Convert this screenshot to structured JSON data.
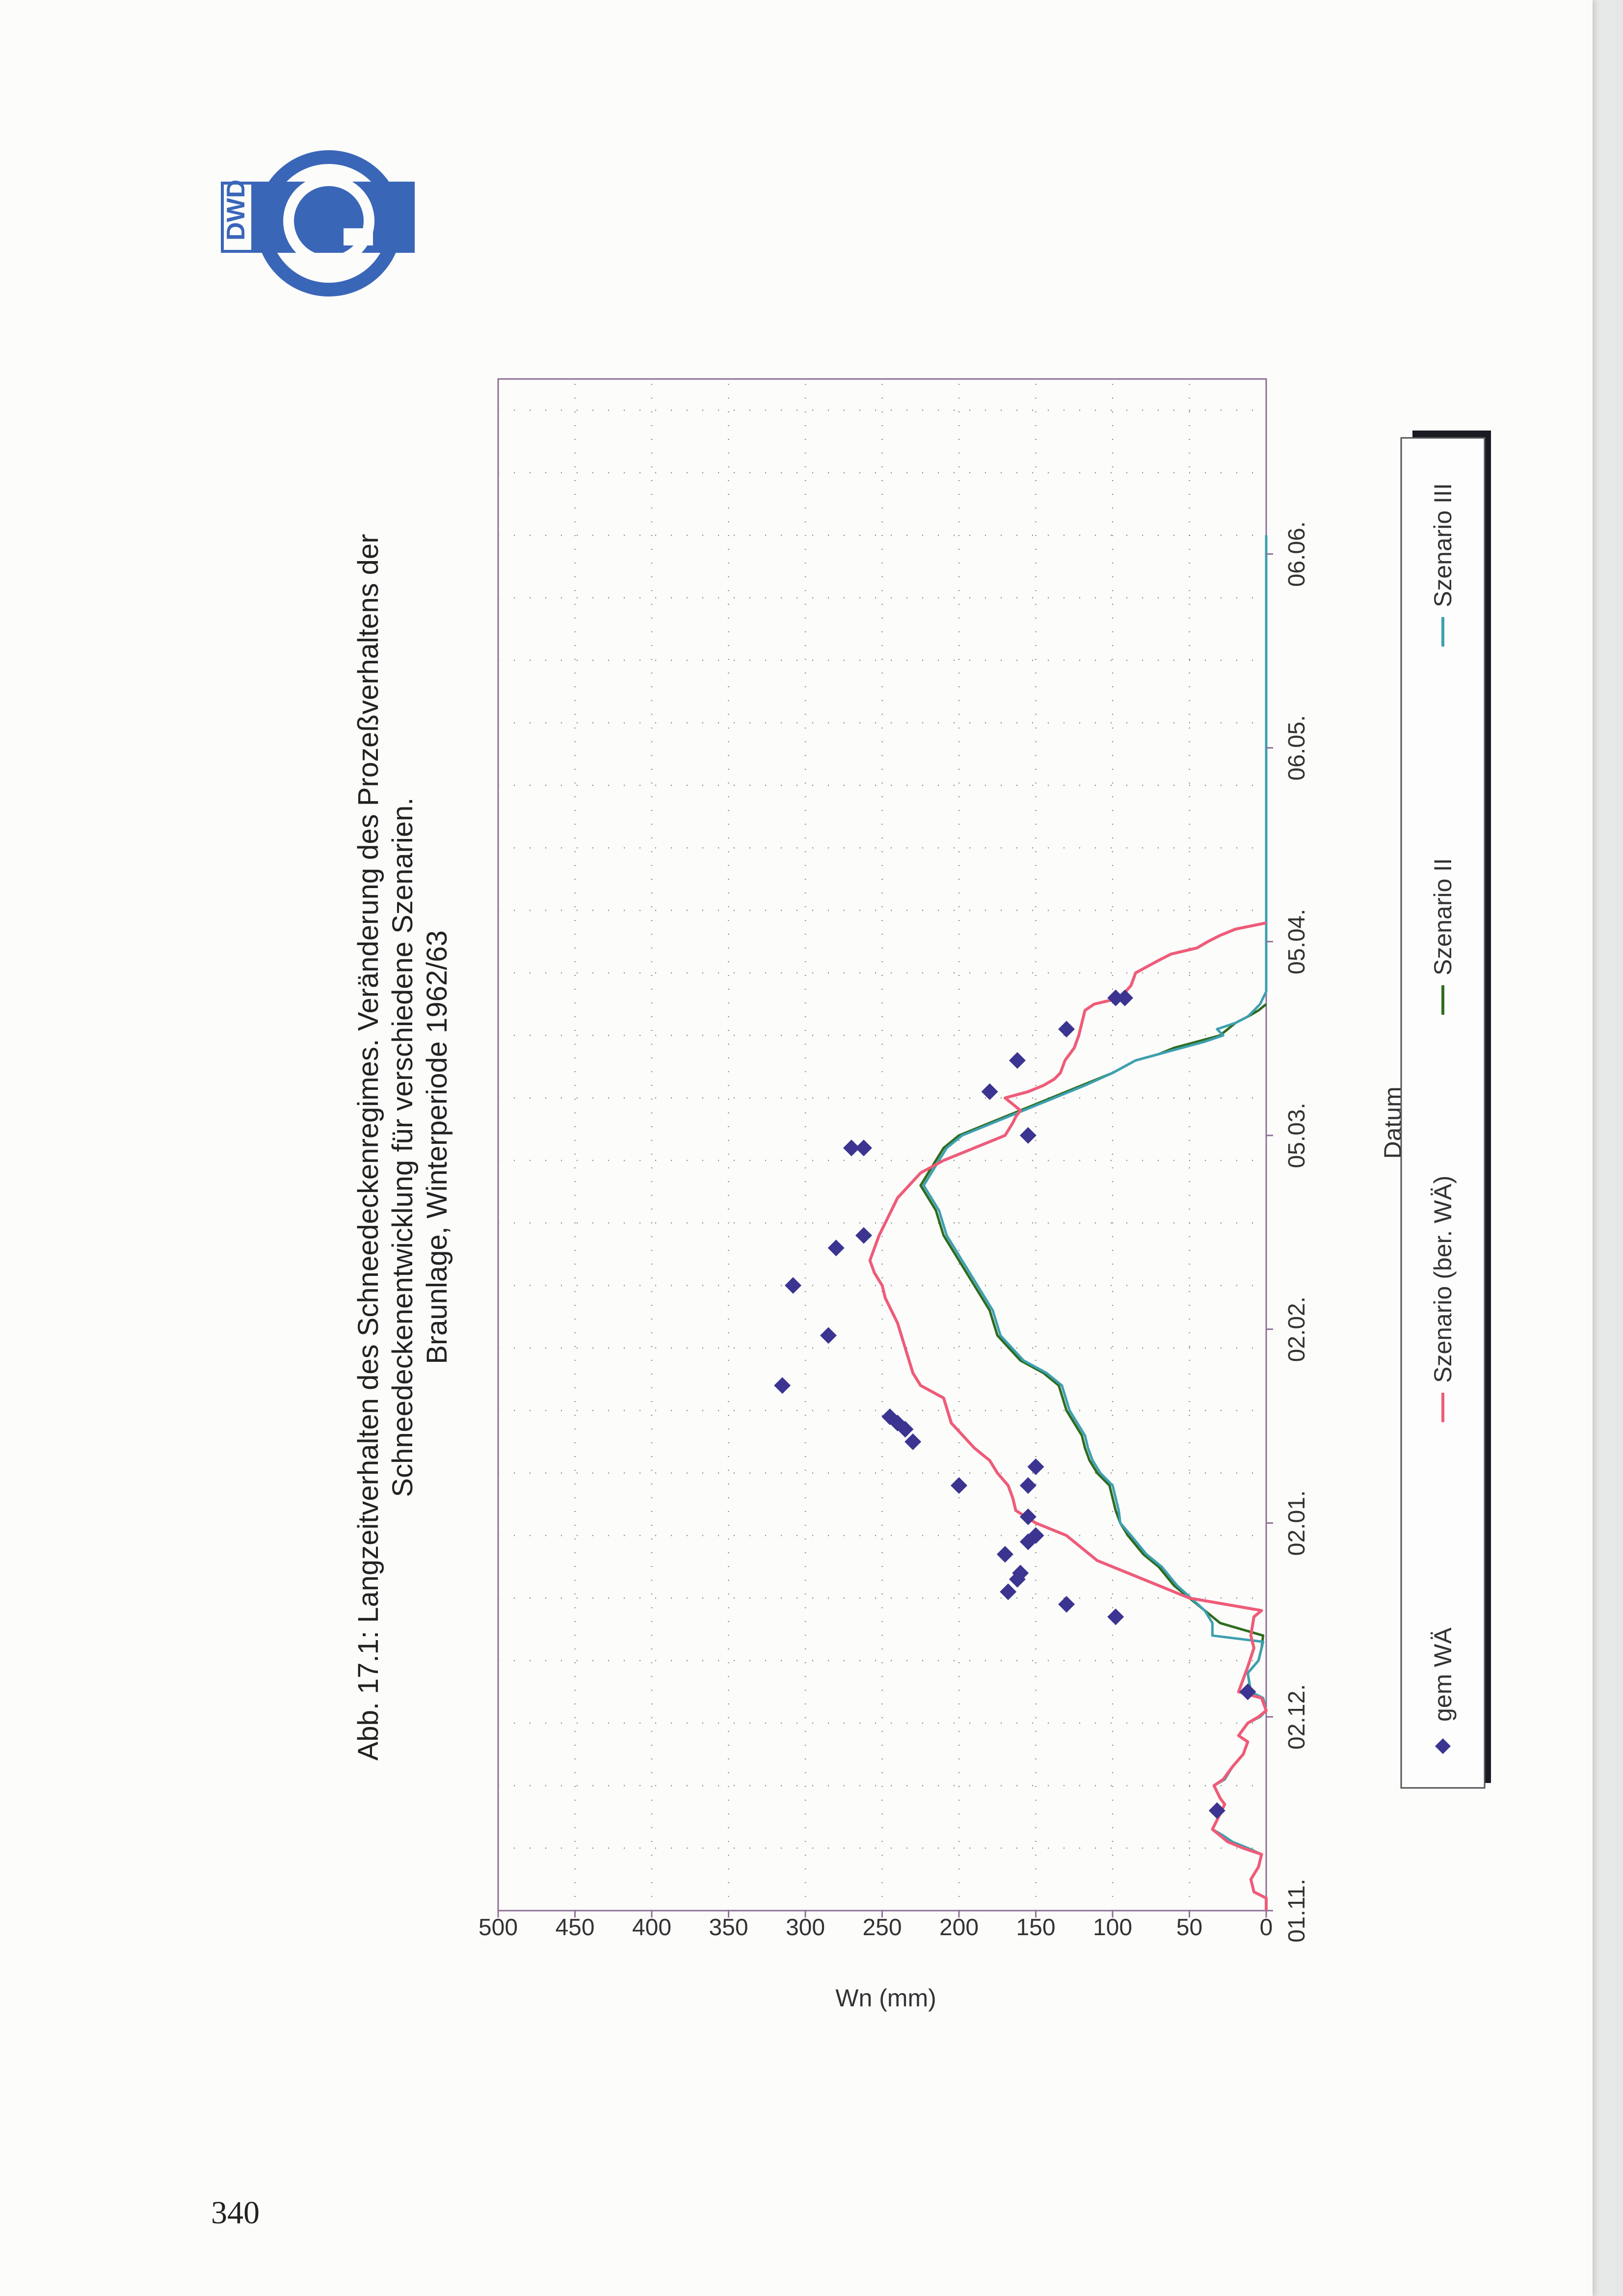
{
  "page": {
    "number": "340"
  },
  "logo": {
    "text": "DWD",
    "color": "#3a66b8"
  },
  "colors": {
    "scenario_ber": "#ee5c78",
    "scenario_2": "#2f6b1f",
    "scenario_3": "#3da0b0",
    "gem": "#3b3490",
    "grid": "#8a8a8a",
    "axis": "#8f6f96"
  },
  "chart_data": {
    "type": "line",
    "title": "Abb. 17.1: Langzeitverhalten des Schneedeckenregimes. Veränderung des Prozeßverhaltens der",
    "title_line2": "Schneedeckenentwicklung für verschiedene Szenarien.",
    "subtitle": "Braunlage, Winterperiode 1962/63",
    "xlabel": "Datum",
    "ylabel": "Wn (mm)",
    "x_unit": "days since 01.11.1962",
    "xlim": [
      0,
      245
    ],
    "ylim": [
      0,
      500
    ],
    "x_ticks": [
      {
        "x": 0,
        "label": "01.11."
      },
      {
        "x": 31,
        "label": "02.12."
      },
      {
        "x": 62,
        "label": "02.01."
      },
      {
        "x": 93,
        "label": "02.02."
      },
      {
        "x": 124,
        "label": "05.03."
      },
      {
        "x": 155,
        "label": "05.04."
      },
      {
        "x": 186,
        "label": "06.05."
      },
      {
        "x": 217,
        "label": "06.06."
      }
    ],
    "y_ticks": [
      0,
      50,
      100,
      150,
      200,
      250,
      300,
      350,
      400,
      450,
      500
    ],
    "x_grid_step": 10,
    "legend": {
      "position": "bottom",
      "entries": [
        {
          "label": "gem WÄ",
          "marker": "diamond",
          "series": "gem"
        },
        {
          "label": "Szenario (ber. WÄ)",
          "marker": "line",
          "series": "ber"
        },
        {
          "label": "Szenario II",
          "marker": "line",
          "series": "s2"
        },
        {
          "label": "Szenario III",
          "marker": "line",
          "series": "s3"
        }
      ]
    },
    "series": [
      {
        "key": "gem",
        "name": "gem WÄ",
        "kind": "points",
        "x": [
          16,
          35,
          47,
          49,
          51,
          53,
          54,
          57,
          59,
          60,
          63,
          68,
          68,
          71,
          75,
          77,
          78,
          79,
          84,
          92,
          100,
          106,
          108,
          122,
          122,
          124,
          131,
          136,
          141,
          146,
          146
        ],
        "y": [
          32,
          12,
          98,
          130,
          168,
          162,
          160,
          170,
          155,
          150,
          155,
          200,
          155,
          150,
          230,
          235,
          240,
          245,
          315,
          285,
          308,
          280,
          262,
          270,
          262,
          155,
          180,
          162,
          130,
          92,
          98
        ]
      },
      {
        "key": "ber",
        "name": "Szenario (ber. WÄ)",
        "kind": "line",
        "x": [
          0,
          2,
          3,
          5,
          7,
          9,
          10,
          11,
          12,
          13,
          14,
          15,
          16,
          17,
          18,
          19,
          20,
          21,
          23,
          25,
          27,
          28,
          30,
          31,
          32,
          34,
          35,
          39,
          42,
          44,
          47,
          48,
          50,
          52,
          54,
          56,
          60,
          62,
          64,
          66,
          68,
          70,
          72,
          74,
          78,
          82,
          84,
          86,
          90,
          94,
          98,
          100,
          102,
          104,
          106,
          108,
          110,
          114,
          118,
          120,
          122,
          124,
          126,
          127,
          128,
          129,
          130,
          131,
          132,
          133,
          134,
          136,
          138,
          140,
          142,
          144,
          145,
          146,
          148,
          150,
          152,
          153,
          154,
          155,
          156,
          157,
          158
        ],
        "y": [
          0,
          0,
          8,
          10,
          5,
          3,
          15,
          25,
          30,
          35,
          33,
          31,
          29,
          27,
          30,
          32,
          34,
          28,
          22,
          15,
          12,
          18,
          12,
          5,
          0,
          3,
          18,
          12,
          8,
          10,
          8,
          3,
          50,
          70,
          90,
          110,
          130,
          150,
          163,
          165,
          168,
          175,
          180,
          190,
          205,
          210,
          225,
          230,
          235,
          240,
          248,
          250,
          255,
          258,
          255,
          252,
          248,
          240,
          225,
          210,
          190,
          170,
          165,
          163,
          160,
          165,
          170,
          155,
          145,
          138,
          134,
          131,
          125,
          122,
          120,
          118,
          112,
          95,
          88,
          85,
          70,
          62,
          45,
          38,
          30,
          20,
          0
        ]
      },
      {
        "key": "s2",
        "name": "Szenario II",
        "kind": "line",
        "x": [
          0,
          2,
          3,
          5,
          7,
          9,
          10,
          11,
          12,
          13,
          14,
          15,
          16,
          17,
          18,
          19,
          20,
          21,
          23,
          25,
          27,
          28,
          30,
          31,
          32,
          34,
          35,
          38,
          40,
          42,
          44,
          46,
          48,
          52,
          55,
          57,
          60,
          62,
          64,
          66,
          68,
          70,
          72,
          74,
          76,
          78,
          80,
          84,
          86,
          88,
          92,
          96,
          98,
          100,
          104,
          108,
          112,
          114,
          116,
          118,
          120,
          122,
          124,
          126,
          128,
          130,
          132,
          134,
          136,
          137,
          138,
          139,
          140,
          142,
          143,
          144,
          145
        ],
        "y": [
          0,
          0,
          8,
          10,
          5,
          3,
          12,
          22,
          28,
          35,
          33,
          31,
          29,
          27,
          30,
          32,
          34,
          27,
          22,
          15,
          12,
          18,
          12,
          4,
          0,
          2,
          10,
          12,
          5,
          3,
          2,
          30,
          40,
          60,
          70,
          80,
          90,
          95,
          98,
          100,
          102,
          110,
          115,
          118,
          120,
          125,
          130,
          135,
          145,
          160,
          175,
          180,
          185,
          190,
          200,
          210,
          215,
          220,
          225,
          220,
          215,
          210,
          200,
          180,
          160,
          140,
          120,
          100,
          85,
          70,
          60,
          45,
          30,
          20,
          12,
          5,
          0
        ]
      },
      {
        "key": "s3",
        "name": "Szenario III",
        "kind": "line",
        "x": [
          0,
          2,
          3,
          5,
          7,
          9,
          10,
          11,
          12,
          13,
          14,
          15,
          16,
          17,
          18,
          19,
          20,
          21,
          23,
          25,
          27,
          28,
          30,
          31,
          32,
          34,
          35,
          38,
          40,
          42,
          43,
          44,
          46,
          48,
          52,
          55,
          57,
          60,
          62,
          64,
          66,
          68,
          70,
          72,
          74,
          76,
          78,
          80,
          84,
          86,
          88,
          92,
          96,
          98,
          100,
          104,
          108,
          112,
          114,
          116,
          118,
          120,
          122,
          124,
          126,
          128,
          130,
          132,
          134,
          136,
          137,
          138,
          139,
          140,
          141,
          142,
          143,
          144,
          145,
          146,
          147,
          220
        ],
        "y": [
          0,
          0,
          8,
          10,
          5,
          3,
          12,
          22,
          28,
          35,
          33,
          31,
          29,
          27,
          30,
          32,
          34,
          27,
          22,
          15,
          12,
          18,
          12,
          4,
          0,
          2,
          10,
          12,
          5,
          3,
          2,
          35,
          35,
          40,
          58,
          68,
          78,
          88,
          95,
          96,
          98,
          100,
          108,
          113,
          116,
          118,
          123,
          128,
          133,
          143,
          158,
          173,
          178,
          183,
          188,
          198,
          208,
          213,
          218,
          223,
          218,
          213,
          208,
          198,
          178,
          158,
          138,
          118,
          100,
          85,
          70,
          55,
          40,
          28,
          32,
          20,
          12,
          8,
          4,
          2,
          0,
          0
        ]
      }
    ]
  }
}
